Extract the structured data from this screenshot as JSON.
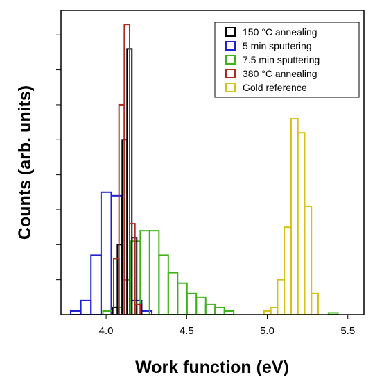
{
  "chart_data": {
    "type": "histogram",
    "xlabel": "Work function (eV)",
    "ylabel": "Counts (arb. units)",
    "xlim": [
      3.72,
      5.6
    ],
    "ylim": [
      0,
      87
    ],
    "x_ticks": [
      4.0,
      4.5,
      5.0,
      5.5
    ],
    "x_tick_labels": [
      "4.0",
      "4.5",
      "5.0",
      "5.5"
    ],
    "y_ticks": [
      10,
      20,
      30,
      40,
      50,
      60,
      70,
      80
    ],
    "y_tick_labels_visible": false,
    "legend_position": "top-right",
    "series": [
      {
        "name": "5 min sputtering",
        "color": "#1f1fd6",
        "bin_width": 0.063,
        "bins": [
          {
            "x0": 3.78,
            "value": 1
          },
          {
            "x0": 3.843,
            "value": 4
          },
          {
            "x0": 3.906,
            "value": 17
          },
          {
            "x0": 3.969,
            "value": 35
          },
          {
            "x0": 4.032,
            "value": 34
          },
          {
            "x0": 4.095,
            "value": 10
          },
          {
            "x0": 4.158,
            "value": 4
          },
          {
            "x0": 4.221,
            "value": 1
          }
        ]
      },
      {
        "name": "7.5 min sputtering",
        "color": "#3fb21a",
        "bin_width": 0.058,
        "bins": [
          {
            "x0": 3.98,
            "value": 1
          },
          {
            "x0": 4.038,
            "value": 2
          },
          {
            "x0": 4.096,
            "value": 10
          },
          {
            "x0": 4.154,
            "value": 21
          },
          {
            "x0": 4.212,
            "value": 24
          },
          {
            "x0": 4.27,
            "value": 24
          },
          {
            "x0": 4.328,
            "value": 17
          },
          {
            "x0": 4.386,
            "value": 12
          },
          {
            "x0": 4.444,
            "value": 9
          },
          {
            "x0": 4.502,
            "value": 6
          },
          {
            "x0": 4.56,
            "value": 5
          },
          {
            "x0": 4.618,
            "value": 3
          },
          {
            "x0": 4.676,
            "value": 2
          },
          {
            "x0": 4.734,
            "value": 1
          },
          {
            "x0": 5.38,
            "value": 0.5
          }
        ]
      },
      {
        "name": "150 °C annealing",
        "color": "#000000",
        "bin_width": 0.03,
        "bins": [
          {
            "x0": 4.04,
            "value": 2
          },
          {
            "x0": 4.07,
            "value": 20
          },
          {
            "x0": 4.1,
            "value": 50
          },
          {
            "x0": 4.13,
            "value": 76
          },
          {
            "x0": 4.16,
            "value": 22
          },
          {
            "x0": 4.19,
            "value": 3
          }
        ]
      },
      {
        "name": "380 °C annealing",
        "color": "#b02a20",
        "bin_width": 0.033,
        "bins": [
          {
            "x0": 4.047,
            "value": 16
          },
          {
            "x0": 4.08,
            "value": 60
          },
          {
            "x0": 4.113,
            "value": 83
          },
          {
            "x0": 4.146,
            "value": 26
          },
          {
            "x0": 4.179,
            "value": 3
          }
        ]
      },
      {
        "name": "Gold reference",
        "color": "#d4c21a",
        "bin_width": 0.042,
        "bins": [
          {
            "x0": 4.98,
            "value": 1
          },
          {
            "x0": 5.022,
            "value": 2
          },
          {
            "x0": 5.064,
            "value": 10
          },
          {
            "x0": 5.106,
            "value": 25
          },
          {
            "x0": 5.148,
            "value": 56
          },
          {
            "x0": 5.19,
            "value": 52
          },
          {
            "x0": 5.232,
            "value": 31
          },
          {
            "x0": 5.274,
            "value": 6
          }
        ]
      }
    ],
    "legend": [
      {
        "label": "150 °C annealing",
        "color": "#000000"
      },
      {
        "label": "5 min sputtering",
        "color": "#1f1fd6"
      },
      {
        "label": "7.5 min sputtering",
        "color": "#3fb21a"
      },
      {
        "label": "380 °C annealing",
        "color": "#b02a20"
      },
      {
        "label": "Gold reference",
        "color": "#d4c21a"
      }
    ]
  }
}
